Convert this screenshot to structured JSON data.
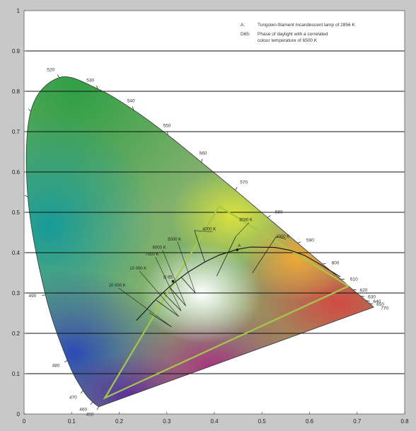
{
  "chart_data": {
    "type": "diagram",
    "xlim": [
      0,
      0.8
    ],
    "ylim": [
      0,
      1
    ],
    "x_ticks": [
      {
        "value": 0,
        "label": "0"
      },
      {
        "value": 0.1,
        "label": "0.1"
      },
      {
        "value": 0.2,
        "label": "0.2"
      },
      {
        "value": 0.3,
        "label": "0.3"
      },
      {
        "value": 0.4,
        "label": "0.4"
      },
      {
        "value": 0.5,
        "label": "0.5"
      },
      {
        "value": 0.6,
        "label": "0.6"
      },
      {
        "value": 0.7,
        "label": "0.7"
      },
      {
        "value": 0.8,
        "label": "0.8"
      }
    ],
    "y_ticks": [
      {
        "value": 0,
        "label": "0"
      },
      {
        "value": 0.1,
        "label": "0.1"
      },
      {
        "value": 0.2,
        "label": "0.2"
      },
      {
        "value": 0.3,
        "label": "0.3"
      },
      {
        "value": 0.4,
        "label": "0.4"
      },
      {
        "value": 0.5,
        "label": "0.5"
      },
      {
        "value": 0.6,
        "label": "0.6"
      },
      {
        "value": 0.7,
        "label": "0.7"
      },
      {
        "value": 0.8,
        "label": "0.8"
      },
      {
        "value": 0.9,
        "label": "0.9"
      },
      {
        "value": 1,
        "label": "1"
      }
    ],
    "grid": "horizontal",
    "spectral_locus": [
      {
        "nm": 450,
        "x": 0.157,
        "y": 0.018
      },
      {
        "nm": 460,
        "x": 0.144,
        "y": 0.03
      },
      {
        "nm": 470,
        "x": 0.124,
        "y": 0.058
      },
      {
        "nm": 480,
        "x": 0.091,
        "y": 0.133
      },
      {
        "nm": 490,
        "x": 0.045,
        "y": 0.295
      },
      {
        "nm": 500,
        "x": 0.008,
        "y": 0.538
      },
      {
        "nm": 510,
        "x": 0.014,
        "y": 0.75
      },
      {
        "nm": 520,
        "x": 0.074,
        "y": 0.834
      },
      {
        "nm": 530,
        "x": 0.155,
        "y": 0.806
      },
      {
        "nm": 540,
        "x": 0.23,
        "y": 0.754
      },
      {
        "nm": 550,
        "x": 0.302,
        "y": 0.692
      },
      {
        "nm": 560,
        "x": 0.373,
        "y": 0.624
      },
      {
        "nm": 570,
        "x": 0.444,
        "y": 0.555
      },
      {
        "nm": 580,
        "x": 0.512,
        "y": 0.487
      },
      {
        "nm": 590,
        "x": 0.575,
        "y": 0.424
      },
      {
        "nm": 600,
        "x": 0.627,
        "y": 0.372
      },
      {
        "nm": 610,
        "x": 0.666,
        "y": 0.334
      },
      {
        "nm": 620,
        "x": 0.691,
        "y": 0.308
      },
      {
        "nm": 630,
        "x": 0.708,
        "y": 0.292
      },
      {
        "nm": 640,
        "x": 0.719,
        "y": 0.281
      },
      {
        "nm": 650,
        "x": 0.726,
        "y": 0.274
      },
      {
        "nm": 770,
        "x": 0.735,
        "y": 0.265
      }
    ],
    "locus_labels": [
      {
        "nm": 520,
        "label": "520"
      },
      {
        "nm": 530,
        "label": "530"
      },
      {
        "nm": 540,
        "label": "540"
      },
      {
        "nm": 550,
        "label": "550"
      },
      {
        "nm": 560,
        "label": "560"
      },
      {
        "nm": 570,
        "label": "570"
      },
      {
        "nm": 580,
        "label": "580"
      },
      {
        "nm": 590,
        "label": "590"
      },
      {
        "nm": 600,
        "label": "600"
      },
      {
        "nm": 610,
        "label": "610"
      },
      {
        "nm": 620,
        "label": "620"
      },
      {
        "nm": 630,
        "label": "630"
      },
      {
        "nm": 640,
        "label": "640"
      },
      {
        "nm": 650,
        "label": "650"
      },
      {
        "nm": 770,
        "label": "770"
      },
      {
        "nm": 490,
        "label": "490"
      },
      {
        "nm": 480,
        "label": "480"
      },
      {
        "nm": 470,
        "label": "470"
      },
      {
        "nm": 460,
        "label": "460"
      },
      {
        "nm": 450,
        "label": "450"
      }
    ],
    "planckian_locus": [
      [
        0.236,
        0.232
      ],
      [
        0.253,
        0.253
      ],
      [
        0.272,
        0.278
      ],
      [
        0.285,
        0.293
      ],
      [
        0.306,
        0.316
      ],
      [
        0.324,
        0.333
      ],
      [
        0.345,
        0.352
      ],
      [
        0.38,
        0.377
      ],
      [
        0.41,
        0.394
      ],
      [
        0.448,
        0.408
      ],
      [
        0.476,
        0.414
      ],
      [
        0.527,
        0.413
      ],
      [
        0.559,
        0.406
      ],
      [
        0.59,
        0.393
      ],
      [
        0.615,
        0.376
      ],
      [
        0.64,
        0.358
      ],
      [
        0.665,
        0.34
      ]
    ],
    "isotemperature_lines": [
      {
        "label": "20 000 K",
        "from": [
          0.263,
          0.251
        ],
        "to": [
          0.31,
          0.216
        ],
        "label_at": [
          0.178,
          0.316
        ]
      },
      {
        "label": "10 000 K",
        "from": [
          0.278,
          0.282
        ],
        "to": [
          0.325,
          0.242
        ],
        "label_at": [
          0.222,
          0.358
        ]
      },
      {
        "label": "7000 K",
        "from": [
          0.294,
          0.299
        ],
        "to": [
          0.33,
          0.256
        ],
        "label_at": [
          0.255,
          0.393
        ]
      },
      {
        "label": "6000 K",
        "from": [
          0.305,
          0.316
        ],
        "to": [
          0.34,
          0.268
        ],
        "label_at": [
          0.27,
          0.41
        ]
      },
      {
        "label": "5000 K",
        "from": [
          0.33,
          0.34
        ],
        "to": [
          0.36,
          0.3
        ],
        "label_at": [
          0.302,
          0.43
        ]
      },
      {
        "label": "4000 K",
        "from": [
          0.38,
          0.377
        ],
        "to": [
          0.358,
          0.455
        ],
        "label_at": [
          0.375,
          0.455
        ]
      },
      {
        "label": "3000 K",
        "from": [
          0.405,
          0.342
        ],
        "to": [
          0.445,
          0.44
        ],
        "label_at": [
          0.452,
          0.478
        ]
      },
      {
        "label": "2000 K",
        "from": [
          0.48,
          0.35
        ],
        "to": [
          0.53,
          0.44
        ],
        "label_at": [
          0.53,
          0.437
        ]
      }
    ],
    "triangle": [
      [
        0.17,
        0.04
      ],
      [
        0.41,
        0.515
      ],
      [
        0.682,
        0.317
      ]
    ],
    "points": [
      {
        "label": "A",
        "x": 0.448,
        "y": 0.407
      },
      {
        "label": "D 65",
        "x": 0.313,
        "y": 0.329
      }
    ],
    "annotations": [
      {
        "key": "A:",
        "text": [
          "Tungsten-filament Incandescent lamp of 2856 K"
        ]
      },
      {
        "key": "D65:",
        "text": [
          "Phase of daylight with a correlated",
          "colour temperature of 6500 K"
        ]
      }
    ],
    "colors": {
      "background": "#ffffff",
      "frame": "#c8c8c8",
      "grid": "#111111",
      "triangle": "#a6c84a",
      "planckian": "#111111"
    }
  }
}
